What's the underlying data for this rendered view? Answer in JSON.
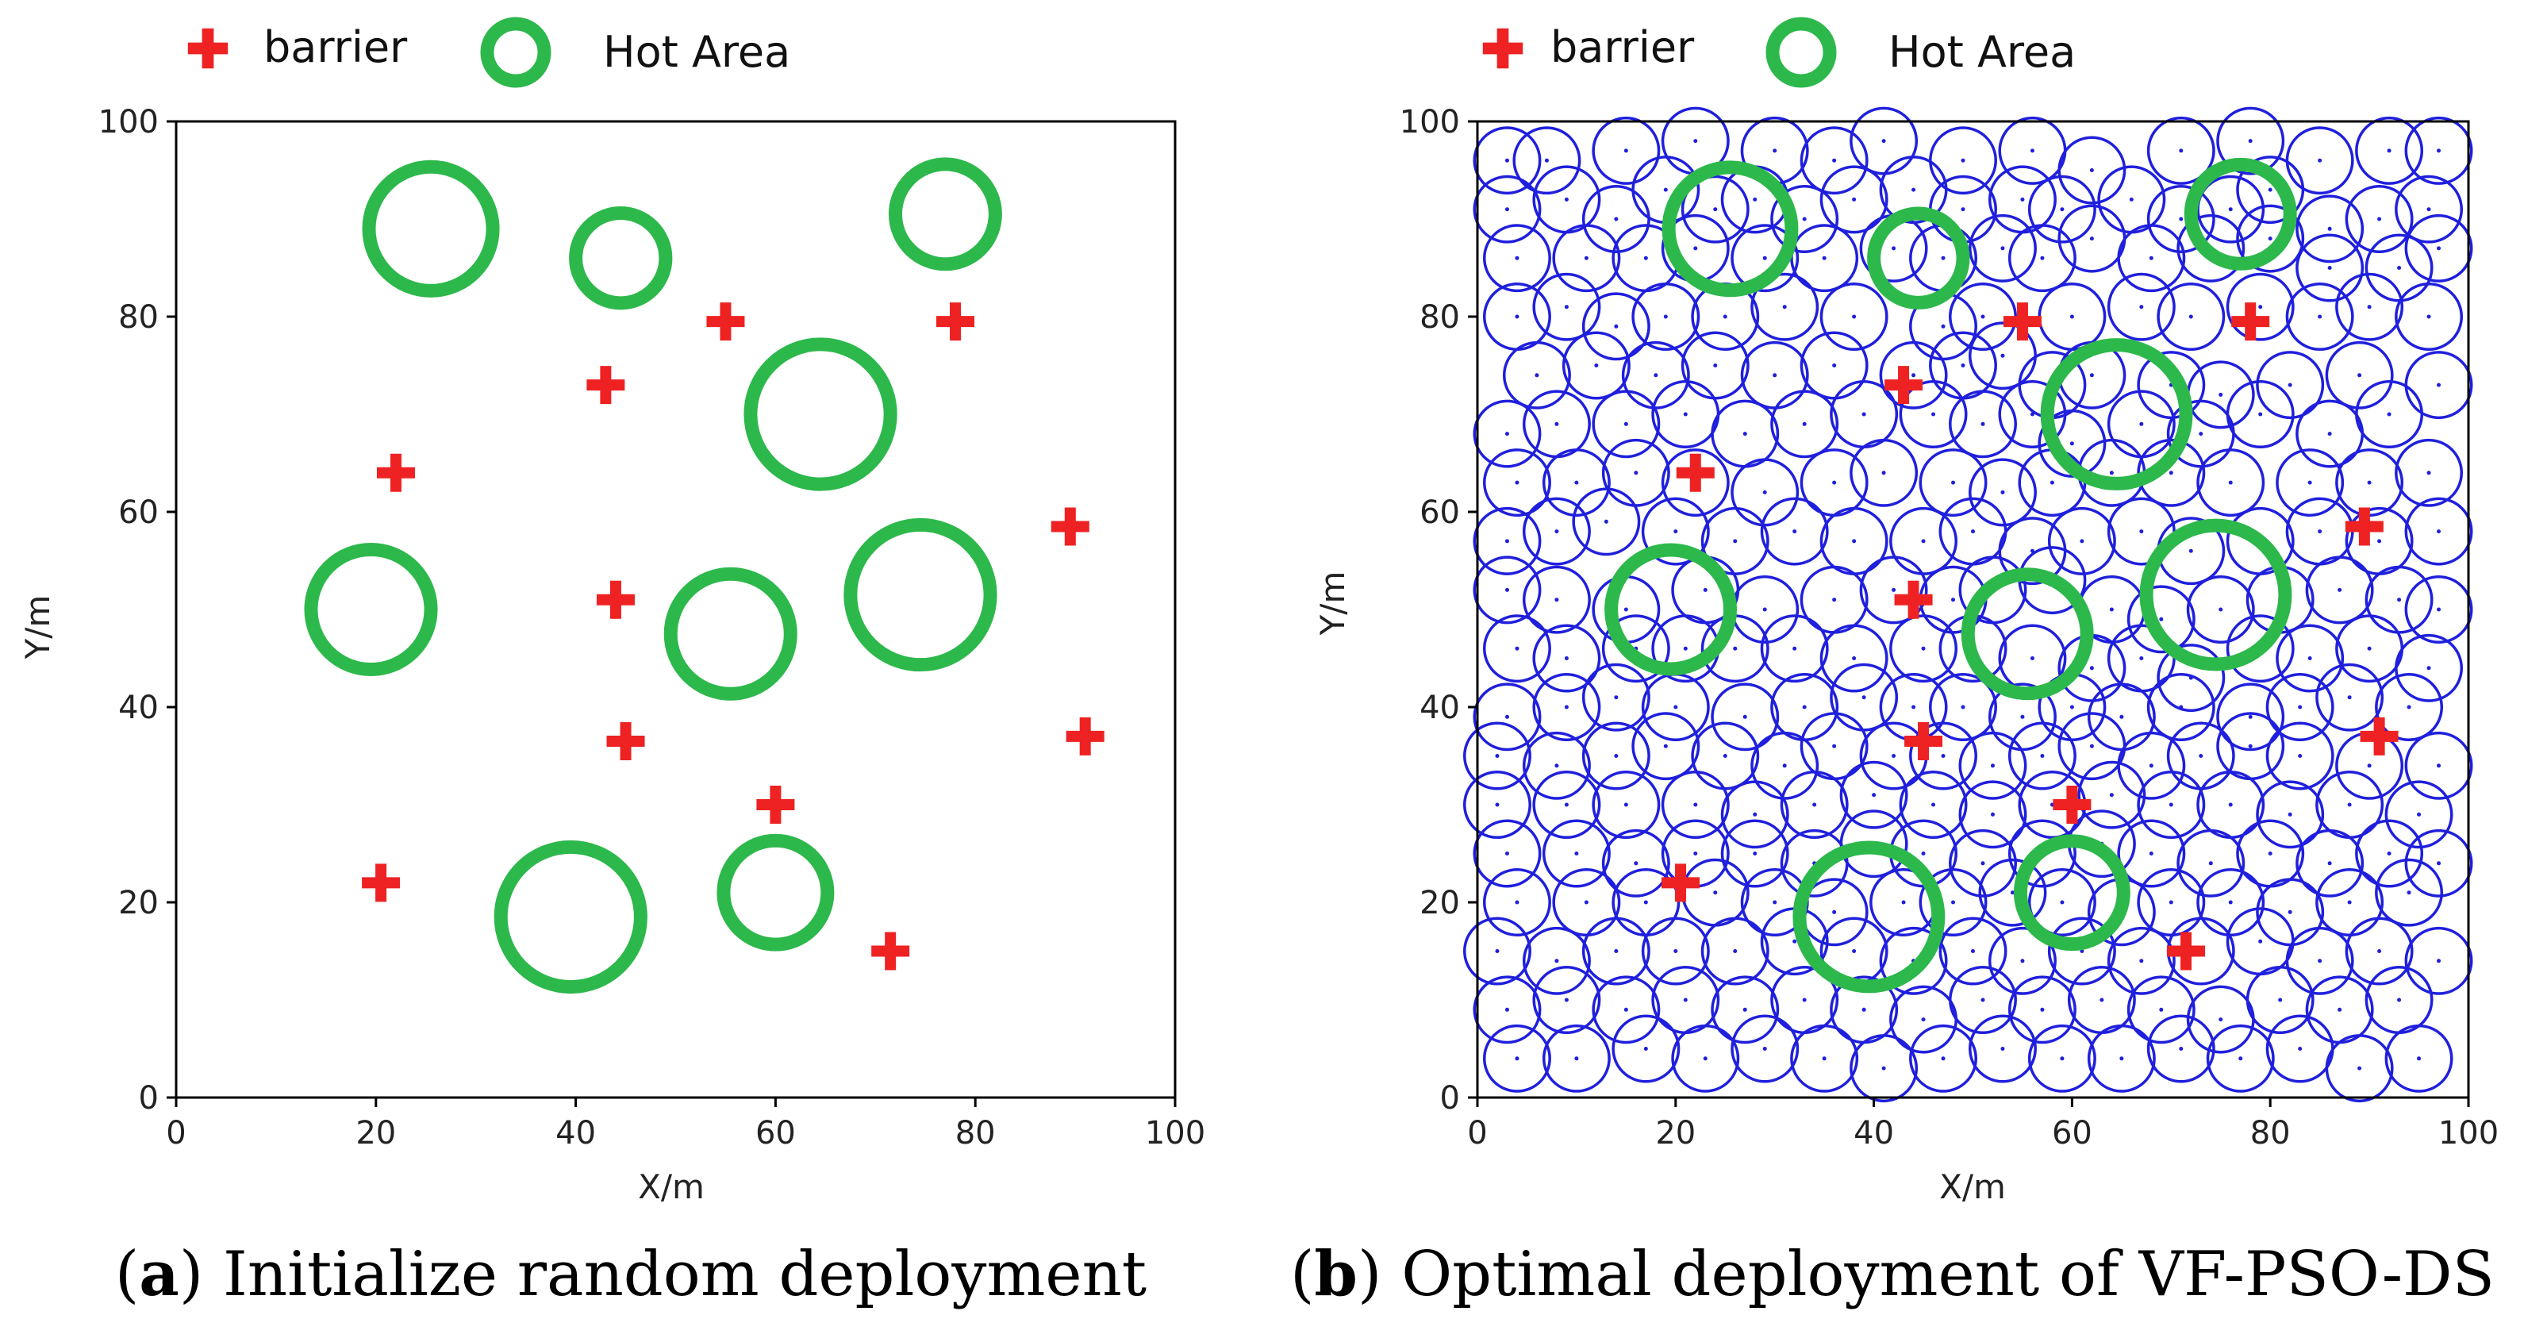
{
  "colors": {
    "barrier": "#ee2222",
    "hot_area": "#2db84b",
    "sensor": "#1f1fdd",
    "axis": "#000000"
  },
  "chart_data": [
    {
      "type": "scatter",
      "panel_letter": "a",
      "caption": "Initialize random deployment",
      "xlabel": "X/m",
      "ylabel": "Y/m",
      "xlim": [
        0,
        100
      ],
      "ylim": [
        0,
        100
      ],
      "xticks": [
        "0",
        "20",
        "40",
        "60",
        "80",
        "100"
      ],
      "yticks": [
        "0",
        "20",
        "40",
        "60",
        "80",
        "100"
      ],
      "legend": [
        "barrier",
        "Hot Area"
      ],
      "legend_position": "top",
      "barriers": [
        [
          22,
          64
        ],
        [
          43,
          73
        ],
        [
          55,
          79.5
        ],
        [
          78,
          79.5
        ],
        [
          89.5,
          58.5
        ],
        [
          44,
          51
        ],
        [
          45,
          36.5
        ],
        [
          60,
          30
        ],
        [
          91,
          37
        ],
        [
          20.5,
          22
        ],
        [
          71.5,
          15
        ]
      ],
      "hot_areas": [
        {
          "x": 25.5,
          "y": 89,
          "r": 6.2
        },
        {
          "x": 44.5,
          "y": 86,
          "r": 4.5
        },
        {
          "x": 77,
          "y": 90.5,
          "r": 5.0
        },
        {
          "x": 64.5,
          "y": 70,
          "r": 7.0
        },
        {
          "x": 19.5,
          "y": 50,
          "r": 6.0
        },
        {
          "x": 55.5,
          "y": 47.5,
          "r": 6.0
        },
        {
          "x": 74.5,
          "y": 51.5,
          "r": 7.0
        },
        {
          "x": 39.5,
          "y": 18.5,
          "r": 7.0
        },
        {
          "x": 60,
          "y": 21,
          "r": 5.2
        }
      ],
      "sensors": []
    },
    {
      "type": "scatter",
      "panel_letter": "b",
      "caption": "Optimal deployment of VF-PSO-DS",
      "xlabel": "X/m",
      "ylabel": "Y/m",
      "xlim": [
        0,
        100
      ],
      "ylim": [
        0,
        100
      ],
      "xticks": [
        "0",
        "20",
        "40",
        "60",
        "80",
        "100"
      ],
      "yticks": [
        "0",
        "20",
        "40",
        "60",
        "80",
        "100"
      ],
      "legend": [
        "barrier",
        "Hot Area"
      ],
      "legend_position": "top",
      "barriers": [
        [
          22,
          64
        ],
        [
          43,
          73
        ],
        [
          55,
          79.5
        ],
        [
          78,
          79.5
        ],
        [
          89.5,
          58.5
        ],
        [
          44,
          51
        ],
        [
          45,
          36.5
        ],
        [
          60,
          30
        ],
        [
          91,
          37
        ],
        [
          20.5,
          22
        ],
        [
          71.5,
          15
        ]
      ],
      "hot_areas": [
        {
          "x": 25.5,
          "y": 89,
          "r": 6.2
        },
        {
          "x": 44.5,
          "y": 86,
          "r": 4.5
        },
        {
          "x": 77,
          "y": 90.5,
          "r": 5.0
        },
        {
          "x": 64.5,
          "y": 70,
          "r": 7.0
        },
        {
          "x": 19.5,
          "y": 50,
          "r": 6.0
        },
        {
          "x": 55.5,
          "y": 47.5,
          "r": 6.0
        },
        {
          "x": 74.5,
          "y": 51.5,
          "r": 7.0
        },
        {
          "x": 39.5,
          "y": 18.5,
          "r": 7.0
        },
        {
          "x": 60,
          "y": 21,
          "r": 5.2
        }
      ],
      "sensor_radius": 3.3,
      "sensors": [
        [
          3,
          96
        ],
        [
          7,
          96
        ],
        [
          15,
          97
        ],
        [
          22,
          98
        ],
        [
          30,
          97
        ],
        [
          36,
          96
        ],
        [
          41,
          98
        ],
        [
          49,
          96
        ],
        [
          56,
          97
        ],
        [
          62,
          95
        ],
        [
          71,
          97
        ],
        [
          78,
          98
        ],
        [
          85,
          96
        ],
        [
          92,
          97
        ],
        [
          97,
          97
        ],
        [
          3,
          91
        ],
        [
          9,
          92
        ],
        [
          14,
          90
        ],
        [
          19,
          93
        ],
        [
          24,
          91
        ],
        [
          28,
          92
        ],
        [
          33,
          90
        ],
        [
          38,
          92
        ],
        [
          44,
          93
        ],
        [
          49,
          91
        ],
        [
          55,
          92
        ],
        [
          59,
          91
        ],
        [
          66,
          92
        ],
        [
          71,
          90
        ],
        [
          76,
          91
        ],
        [
          80,
          93
        ],
        [
          86,
          89
        ],
        [
          91,
          90
        ],
        [
          96,
          91
        ],
        [
          4,
          86
        ],
        [
          11,
          86
        ],
        [
          17,
          86
        ],
        [
          22,
          87
        ],
        [
          29,
          86
        ],
        [
          35,
          86
        ],
        [
          42,
          87
        ],
        [
          47,
          86
        ],
        [
          53,
          87
        ],
        [
          57,
          86
        ],
        [
          62,
          88
        ],
        [
          68,
          86
        ],
        [
          74,
          87
        ],
        [
          80,
          88
        ],
        [
          86,
          85
        ],
        [
          93,
          85
        ],
        [
          97,
          87
        ],
        [
          4,
          80
        ],
        [
          9,
          81
        ],
        [
          14,
          79
        ],
        [
          19,
          80
        ],
        [
          25,
          80
        ],
        [
          31,
          81
        ],
        [
          38,
          80
        ],
        [
          47,
          79
        ],
        [
          51,
          80
        ],
        [
          60,
          80
        ],
        [
          67,
          81
        ],
        [
          72,
          80
        ],
        [
          79,
          81
        ],
        [
          85,
          80
        ],
        [
          90,
          81
        ],
        [
          96,
          80
        ],
        [
          6,
          74
        ],
        [
          12,
          75
        ],
        [
          18,
          74
        ],
        [
          24,
          75
        ],
        [
          30,
          74
        ],
        [
          36,
          75
        ],
        [
          44,
          74
        ],
        [
          49,
          75
        ],
        [
          53,
          76
        ],
        [
          58,
          73
        ],
        [
          62,
          74
        ],
        [
          70,
          73
        ],
        [
          75,
          72
        ],
        [
          82,
          73
        ],
        [
          89,
          74
        ],
        [
          97,
          73
        ],
        [
          3,
          68
        ],
        [
          8,
          69
        ],
        [
          15,
          69
        ],
        [
          21,
          70
        ],
        [
          27,
          68
        ],
        [
          33,
          69
        ],
        [
          39,
          70
        ],
        [
          46,
          70
        ],
        [
          51,
          69
        ],
        [
          56,
          70
        ],
        [
          60,
          67
        ],
        [
          67,
          69
        ],
        [
          73,
          68
        ],
        [
          79,
          70
        ],
        [
          86,
          68
        ],
        [
          92,
          70
        ],
        [
          4,
          63
        ],
        [
          10,
          63
        ],
        [
          16,
          64
        ],
        [
          22,
          63
        ],
        [
          29,
          62
        ],
        [
          36,
          63
        ],
        [
          41,
          64
        ],
        [
          48,
          63
        ],
        [
          53,
          62
        ],
        [
          58,
          63
        ],
        [
          64,
          64
        ],
        [
          70,
          64
        ],
        [
          76,
          63
        ],
        [
          84,
          63
        ],
        [
          90,
          63
        ],
        [
          96,
          64
        ],
        [
          3,
          57
        ],
        [
          8,
          58
        ],
        [
          13,
          59
        ],
        [
          20,
          58
        ],
        [
          26,
          57
        ],
        [
          32,
          58
        ],
        [
          38,
          57
        ],
        [
          45,
          57
        ],
        [
          50,
          58
        ],
        [
          56,
          56
        ],
        [
          61,
          57
        ],
        [
          67,
          58
        ],
        [
          72,
          56
        ],
        [
          79,
          57
        ],
        [
          85,
          58
        ],
        [
          91,
          57
        ],
        [
          97,
          58
        ],
        [
          3,
          52
        ],
        [
          8,
          51
        ],
        [
          15,
          50
        ],
        [
          23,
          52
        ],
        [
          29,
          50
        ],
        [
          36,
          51
        ],
        [
          42,
          52
        ],
        [
          48,
          51
        ],
        [
          52,
          52
        ],
        [
          58,
          53
        ],
        [
          64,
          50
        ],
        [
          69,
          49
        ],
        [
          75,
          50
        ],
        [
          81,
          51
        ],
        [
          87,
          52
        ],
        [
          93,
          51
        ],
        [
          97,
          50
        ],
        [
          4,
          46
        ],
        [
          9,
          45
        ],
        [
          16,
          46
        ],
        [
          21,
          46
        ],
        [
          26,
          46
        ],
        [
          32,
          46
        ],
        [
          38,
          45
        ],
        [
          45,
          46
        ],
        [
          50,
          46
        ],
        [
          56,
          45
        ],
        [
          62,
          44
        ],
        [
          67,
          45
        ],
        [
          72,
          43
        ],
        [
          79,
          46
        ],
        [
          84,
          45
        ],
        [
          90,
          46
        ],
        [
          96,
          44
        ],
        [
          3,
          39
        ],
        [
          9,
          40
        ],
        [
          14,
          41
        ],
        [
          20,
          40
        ],
        [
          27,
          39
        ],
        [
          33,
          40
        ],
        [
          39,
          41
        ],
        [
          44,
          40
        ],
        [
          49,
          40
        ],
        [
          55,
          39
        ],
        [
          60,
          40
        ],
        [
          65,
          39
        ],
        [
          71,
          40
        ],
        [
          78,
          39
        ],
        [
          83,
          40
        ],
        [
          88,
          41
        ],
        [
          94,
          40
        ],
        [
          2,
          35
        ],
        [
          8,
          34
        ],
        [
          14,
          35
        ],
        [
          19,
          36
        ],
        [
          25,
          35
        ],
        [
          31,
          34
        ],
        [
          36,
          36
        ],
        [
          42,
          35
        ],
        [
          47,
          35
        ],
        [
          52,
          34
        ],
        [
          57,
          35
        ],
        [
          62,
          36
        ],
        [
          68,
          34
        ],
        [
          73,
          35
        ],
        [
          78,
          36
        ],
        [
          83,
          35
        ],
        [
          90,
          34
        ],
        [
          97,
          34
        ],
        [
          2,
          30
        ],
        [
          9,
          30
        ],
        [
          15,
          30
        ],
        [
          22,
          30
        ],
        [
          28,
          29
        ],
        [
          34,
          30
        ],
        [
          40,
          31
        ],
        [
          46,
          30
        ],
        [
          52,
          29
        ],
        [
          58,
          30
        ],
        [
          64,
          31
        ],
        [
          70,
          30
        ],
        [
          76,
          30
        ],
        [
          82,
          29
        ],
        [
          88,
          30
        ],
        [
          95,
          29
        ],
        [
          3,
          25
        ],
        [
          10,
          25
        ],
        [
          16,
          24
        ],
        [
          22,
          25
        ],
        [
          28,
          25
        ],
        [
          34,
          24
        ],
        [
          40,
          26
        ],
        [
          45,
          25
        ],
        [
          51,
          24
        ],
        [
          57,
          25
        ],
        [
          63,
          26
        ],
        [
          68,
          25
        ],
        [
          74,
          24
        ],
        [
          80,
          25
        ],
        [
          86,
          24
        ],
        [
          92,
          25
        ],
        [
          97,
          24
        ],
        [
          4,
          20
        ],
        [
          11,
          20
        ],
        [
          17,
          20
        ],
        [
          24,
          21
        ],
        [
          30,
          20
        ],
        [
          36,
          19
        ],
        [
          43,
          20
        ],
        [
          48,
          20
        ],
        [
          54,
          21
        ],
        [
          59,
          20
        ],
        [
          65,
          19
        ],
        [
          70,
          20
        ],
        [
          76,
          20
        ],
        [
          82,
          19
        ],
        [
          88,
          20
        ],
        [
          94,
          21
        ],
        [
          2,
          15
        ],
        [
          8,
          14
        ],
        [
          14,
          15
        ],
        [
          20,
          15
        ],
        [
          26,
          15
        ],
        [
          32,
          16
        ],
        [
          38,
          15
        ],
        [
          44,
          14
        ],
        [
          50,
          15
        ],
        [
          55,
          14
        ],
        [
          61,
          15
        ],
        [
          67,
          14
        ],
        [
          73,
          15
        ],
        [
          79,
          16
        ],
        [
          85,
          14
        ],
        [
          91,
          15
        ],
        [
          97,
          14
        ],
        [
          3,
          9
        ],
        [
          9,
          10
        ],
        [
          15,
          9
        ],
        [
          21,
          10
        ],
        [
          27,
          9
        ],
        [
          33,
          10
        ],
        [
          39,
          9
        ],
        [
          45,
          8
        ],
        [
          51,
          10
        ],
        [
          57,
          9
        ],
        [
          63,
          10
        ],
        [
          69,
          9
        ],
        [
          75,
          8
        ],
        [
          81,
          10
        ],
        [
          87,
          9
        ],
        [
          93,
          10
        ],
        [
          4,
          4
        ],
        [
          10,
          4
        ],
        [
          17,
          5
        ],
        [
          23,
          4
        ],
        [
          29,
          5
        ],
        [
          35,
          4
        ],
        [
          41,
          3
        ],
        [
          47,
          4
        ],
        [
          53,
          5
        ],
        [
          59,
          4
        ],
        [
          65,
          4
        ],
        [
          71,
          5
        ],
        [
          77,
          4
        ],
        [
          83,
          5
        ],
        [
          89,
          3
        ],
        [
          95,
          4
        ]
      ]
    }
  ]
}
